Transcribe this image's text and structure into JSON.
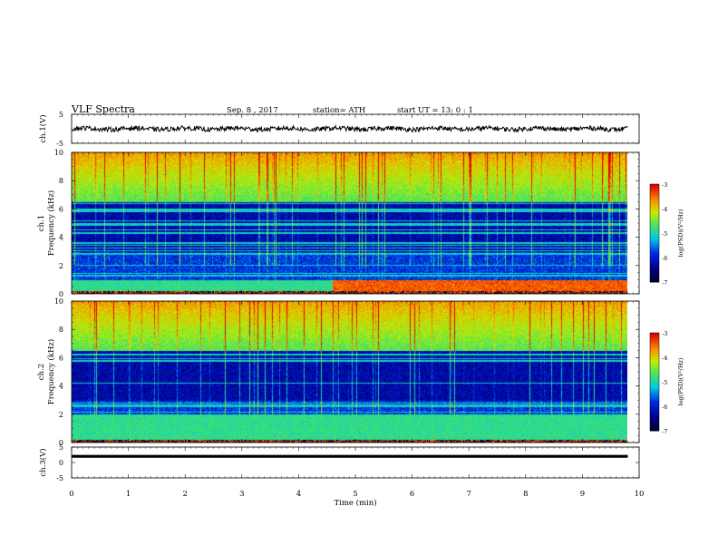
{
  "header": {
    "title": "VLF  Spectra",
    "date": "Sep. 8 , 2017",
    "station": "station= ATH",
    "start_ut": "start  UT  =   13: 0  : 1"
  },
  "chart_data": [
    {
      "type": "line",
      "ylabel": "ch.1(V)",
      "ylim": [
        -5,
        5
      ],
      "yticks": [
        "5",
        "-5"
      ],
      "xlim": [
        0,
        10
      ],
      "series": [
        {
          "x_range": [
            0,
            9.8
          ],
          "baseline": 0,
          "amplitude": 0.8
        }
      ],
      "line_color": "#000000"
    },
    {
      "type": "heatmap",
      "ylabel_top": "ch.1",
      "ylabel": "Frequency (kHz)",
      "ylim": [
        0,
        10
      ],
      "yticks": [
        "0",
        "2",
        "4",
        "6",
        "8",
        "10"
      ],
      "xlim": [
        0,
        10
      ],
      "x_data_range": [
        0,
        9.8
      ],
      "colorbar": {
        "label": "log(PSD)(V²/Hz)",
        "range": [
          -7,
          -3
        ],
        "ticks": [
          "-3",
          "-4",
          "-5",
          "-6",
          "-7"
        ]
      },
      "features": {
        "low_band_khz": [
          0.2,
          1.0
        ],
        "low_band_peak_minutes": [
          4.6,
          9.8
        ],
        "high_band_khz": [
          6.5,
          10
        ],
        "dark_band_khz": [
          3.0,
          6.0
        ]
      }
    },
    {
      "type": "heatmap",
      "ylabel_top": "ch.2",
      "ylabel": "Frequency (kHz)",
      "ylim": [
        0,
        10
      ],
      "yticks": [
        "0",
        "2",
        "4",
        "6",
        "8",
        "10"
      ],
      "xlim": [
        0,
        10
      ],
      "x_data_range": [
        0,
        9.8
      ],
      "colorbar": {
        "label": "log(PSD)(V²/Hz)",
        "range": [
          -7,
          -3
        ],
        "ticks": [
          "-3",
          "-4",
          "-5",
          "-6",
          "-7"
        ]
      },
      "features": {
        "low_band_khz": [
          0.2,
          2.0
        ],
        "high_band_khz": [
          6.5,
          10
        ],
        "dark_band_khz": [
          3.0,
          6.0
        ]
      }
    },
    {
      "type": "line",
      "ylabel": "ch.3(V)",
      "ylim": [
        -5,
        5
      ],
      "yticks": [
        "5",
        "0",
        "-5"
      ],
      "xlim": [
        0,
        10
      ],
      "series": [
        {
          "x_range": [
            0,
            9.8
          ],
          "baseline": 2,
          "amplitude": 0
        }
      ],
      "line_color": "#000000"
    }
  ],
  "xaxis": {
    "label": "Time  (min)",
    "ticks": [
      "0",
      "1",
      "2",
      "3",
      "4",
      "5",
      "6",
      "7",
      "8",
      "9",
      "10"
    ]
  }
}
